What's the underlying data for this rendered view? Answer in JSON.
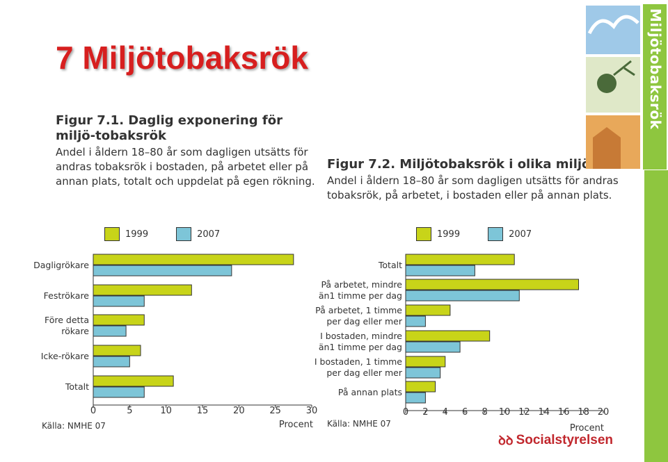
{
  "page": {
    "title": "7 Miljötobaksrök",
    "logo_text": "Miljötobaksrök",
    "publisher_logo": "Socialstyrelsen"
  },
  "figures": [
    {
      "heading": "Figur 7.1. Daglig exponering för miljö-tobaksrök",
      "description": "Andel i åldern 18–80 år som dagligen utsätts för andras tobaksrök i bostaden, på arbetet eller på annan plats, totalt och uppdelat på egen rökning."
    },
    {
      "heading": "Figur 7.2. Miljötobaksrök i olika miljöer",
      "description": "Andel i åldern 18–80 år som dagligen utsätts för andras tobaksrök, på arbetet, i bostaden eller på annan plats."
    }
  ],
  "colors": {
    "title_red": "#d71f1f",
    "series_1999": "#c8d419",
    "series_2007": "#7dc5d8",
    "logo_green": "#8ec63f",
    "axis": "#333333"
  },
  "chart_data": [
    {
      "type": "bar",
      "orientation": "horizontal",
      "categories": [
        "Dagligrökare",
        "Feströkare",
        "Före detta rökare",
        "Icke-rökare",
        "Totalt"
      ],
      "series": [
        {
          "name": "1999",
          "values": [
            27.5,
            13.5,
            7,
            6.5,
            11
          ]
        },
        {
          "name": "2007",
          "values": [
            19,
            7,
            4.5,
            5,
            7
          ]
        }
      ],
      "xlim": [
        0,
        30
      ],
      "xticks": [
        "0",
        "5",
        "10",
        "15",
        "20",
        "25",
        "30"
      ],
      "xlabel": "Procent",
      "source": "Källa: NMHE 07",
      "legend": [
        "1999",
        "2007"
      ],
      "legend_position": "top"
    },
    {
      "type": "bar",
      "orientation": "horizontal",
      "categories": [
        "Totalt",
        "På arbetet, mindre än1 timme per dag",
        "På arbetet, 1 timme per dag eller mer",
        "I bostaden, mindre än1 timme per dag",
        "I bostaden, 1 timme per dag eller mer",
        "På annan plats"
      ],
      "series": [
        {
          "name": "1999",
          "values": [
            11,
            17.5,
            4.5,
            8.5,
            4,
            3
          ]
        },
        {
          "name": "2007",
          "values": [
            7,
            11.5,
            2,
            5.5,
            3.5,
            2
          ]
        }
      ],
      "xlim": [
        0,
        20
      ],
      "xticks": [
        "0",
        "2",
        "4",
        "6",
        "8",
        "10",
        "12",
        "14",
        "16",
        "18",
        "20"
      ],
      "xlabel": "Procent",
      "source": "Källa: NMHE 07",
      "legend": [
        "1999",
        "2007"
      ],
      "legend_position": "top"
    }
  ]
}
